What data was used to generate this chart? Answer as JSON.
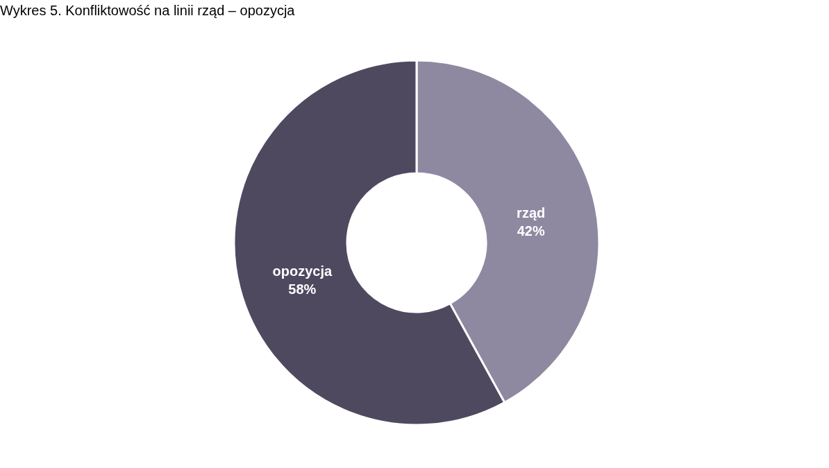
{
  "chart_data": {
    "type": "donut",
    "title": "Wykres 5. Konfliktowość na linii rząd – opozycja",
    "categories": [
      "rząd",
      "opozycja"
    ],
    "values": [
      42,
      58
    ],
    "value_labels": [
      "42%",
      "58%"
    ],
    "colors": [
      "#8e88a0",
      "#4f4960"
    ]
  }
}
